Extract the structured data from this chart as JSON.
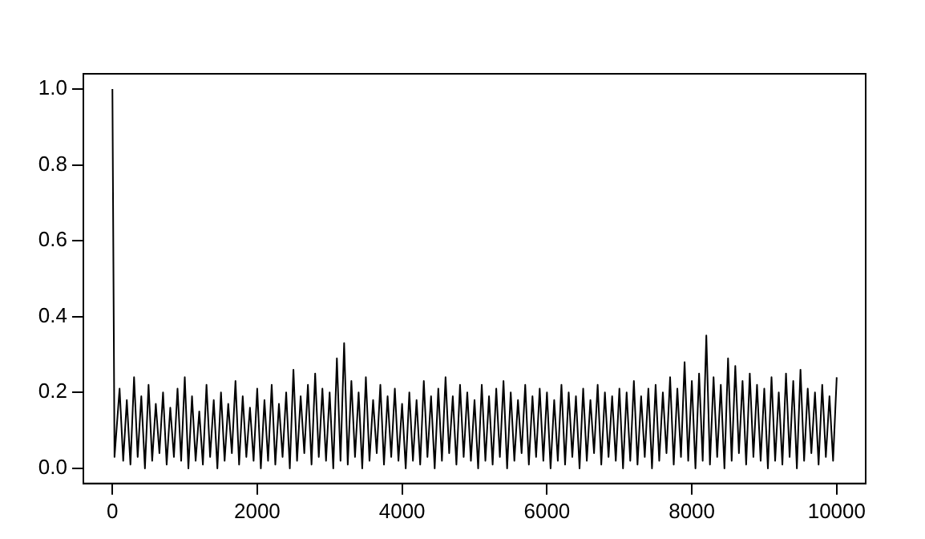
{
  "chart_data": {
    "type": "line",
    "xlim": [
      -400,
      10400
    ],
    "ylim": [
      -0.04,
      1.04
    ],
    "xticks": [
      0,
      2000,
      4000,
      6000,
      8000,
      10000
    ],
    "yticks": [
      {
        "value": 0,
        "label": "0.0"
      },
      {
        "value": 0.2,
        "label": "0.2"
      },
      {
        "value": 0.4,
        "label": "0.4"
      },
      {
        "value": 0.6,
        "label": "0.6"
      },
      {
        "value": 0.8,
        "label": "0.8"
      },
      {
        "value": 1,
        "label": "1.0"
      }
    ],
    "grid": false,
    "legend": false,
    "marker": "none",
    "line_style": "solid",
    "series": [
      {
        "color": "#000000",
        "x": [
          1,
          30,
          100,
          150,
          200,
          250,
          300,
          350,
          400,
          450,
          500,
          550,
          600,
          650,
          700,
          750,
          800,
          850,
          900,
          950,
          1000,
          1050,
          1100,
          1150,
          1200,
          1250,
          1300,
          1350,
          1400,
          1450,
          1500,
          1550,
          1600,
          1650,
          1700,
          1750,
          1800,
          1850,
          1900,
          1950,
          2000,
          2050,
          2100,
          2150,
          2200,
          2250,
          2300,
          2350,
          2400,
          2450,
          2500,
          2550,
          2600,
          2650,
          2700,
          2750,
          2800,
          2850,
          2900,
          2950,
          3000,
          3050,
          3100,
          3150,
          3200,
          3250,
          3300,
          3350,
          3400,
          3450,
          3500,
          3550,
          3600,
          3650,
          3700,
          3750,
          3800,
          3850,
          3900,
          3950,
          4000,
          4050,
          4100,
          4150,
          4200,
          4250,
          4300,
          4350,
          4400,
          4450,
          4500,
          4550,
          4600,
          4650,
          4700,
          4750,
          4800,
          4850,
          4900,
          4950,
          5000,
          5050,
          5100,
          5150,
          5200,
          5250,
          5300,
          5350,
          5400,
          5450,
          5500,
          5550,
          5600,
          5650,
          5700,
          5750,
          5800,
          5850,
          5900,
          5950,
          6000,
          6050,
          6100,
          6150,
          6200,
          6250,
          6300,
          6350,
          6400,
          6450,
          6500,
          6550,
          6600,
          6650,
          6700,
          6750,
          6800,
          6850,
          6900,
          6950,
          7000,
          7050,
          7100,
          7150,
          7200,
          7250,
          7300,
          7350,
          7400,
          7450,
          7500,
          7550,
          7600,
          7650,
          7700,
          7750,
          7800,
          7850,
          7900,
          7950,
          8000,
          8050,
          8100,
          8150,
          8200,
          8250,
          8300,
          8350,
          8400,
          8450,
          8500,
          8550,
          8600,
          8650,
          8700,
          8750,
          8800,
          8850,
          8900,
          8950,
          9000,
          9050,
          9100,
          9150,
          9200,
          9250,
          9300,
          9350,
          9400,
          9450,
          9500,
          9550,
          9600,
          9650,
          9700,
          9750,
          9800,
          9850,
          9900,
          9950,
          10000
        ],
        "values": [
          1.0,
          0.03,
          0.21,
          0.02,
          0.18,
          0.01,
          0.24,
          0.03,
          0.19,
          0,
          0.22,
          0.02,
          0.17,
          0.04,
          0.2,
          0.01,
          0.16,
          0.03,
          0.21,
          0.02,
          0.24,
          0,
          0.19,
          0.02,
          0.15,
          0.01,
          0.22,
          0.03,
          0.18,
          0,
          0.2,
          0.02,
          0.17,
          0.04,
          0.23,
          0.01,
          0.19,
          0.03,
          0.16,
          0.02,
          0.21,
          0,
          0.18,
          0.02,
          0.22,
          0.01,
          0.17,
          0.03,
          0.2,
          0,
          0.26,
          0.02,
          0.19,
          0.04,
          0.22,
          0.01,
          0.25,
          0.03,
          0.21,
          0.02,
          0.2,
          0,
          0.29,
          0.02,
          0.33,
          0.01,
          0.23,
          0.03,
          0.2,
          0,
          0.24,
          0.02,
          0.18,
          0.04,
          0.22,
          0.01,
          0.19,
          0.03,
          0.21,
          0.02,
          0.17,
          0,
          0.2,
          0.02,
          0.18,
          0.01,
          0.23,
          0.03,
          0.19,
          0,
          0.21,
          0.02,
          0.24,
          0.04,
          0.19,
          0.01,
          0.22,
          0.03,
          0.2,
          0.02,
          0.18,
          0,
          0.22,
          0.02,
          0.19,
          0.01,
          0.21,
          0.03,
          0.23,
          0,
          0.2,
          0.02,
          0.18,
          0.04,
          0.22,
          0.01,
          0.19,
          0.03,
          0.21,
          0.02,
          0.2,
          0,
          0.18,
          0.02,
          0.22,
          0.01,
          0.2,
          0.03,
          0.19,
          0,
          0.21,
          0.02,
          0.18,
          0.04,
          0.22,
          0.01,
          0.2,
          0.03,
          0.19,
          0.02,
          0.21,
          0,
          0.2,
          0.02,
          0.23,
          0.01,
          0.19,
          0.03,
          0.21,
          0,
          0.22,
          0.02,
          0.2,
          0.04,
          0.24,
          0.01,
          0.21,
          0.03,
          0.28,
          0.02,
          0.23,
          0,
          0.25,
          0.02,
          0.35,
          0.01,
          0.24,
          0.03,
          0.22,
          0,
          0.29,
          0.02,
          0.27,
          0.04,
          0.23,
          0.01,
          0.25,
          0.03,
          0.22,
          0.02,
          0.21,
          0,
          0.24,
          0.02,
          0.2,
          0.01,
          0.25,
          0.03,
          0.23,
          0,
          0.26,
          0.02,
          0.21,
          0.04,
          0.2,
          0.01,
          0.22,
          0.03,
          0.19,
          0.02,
          0.24
        ]
      }
    ]
  }
}
